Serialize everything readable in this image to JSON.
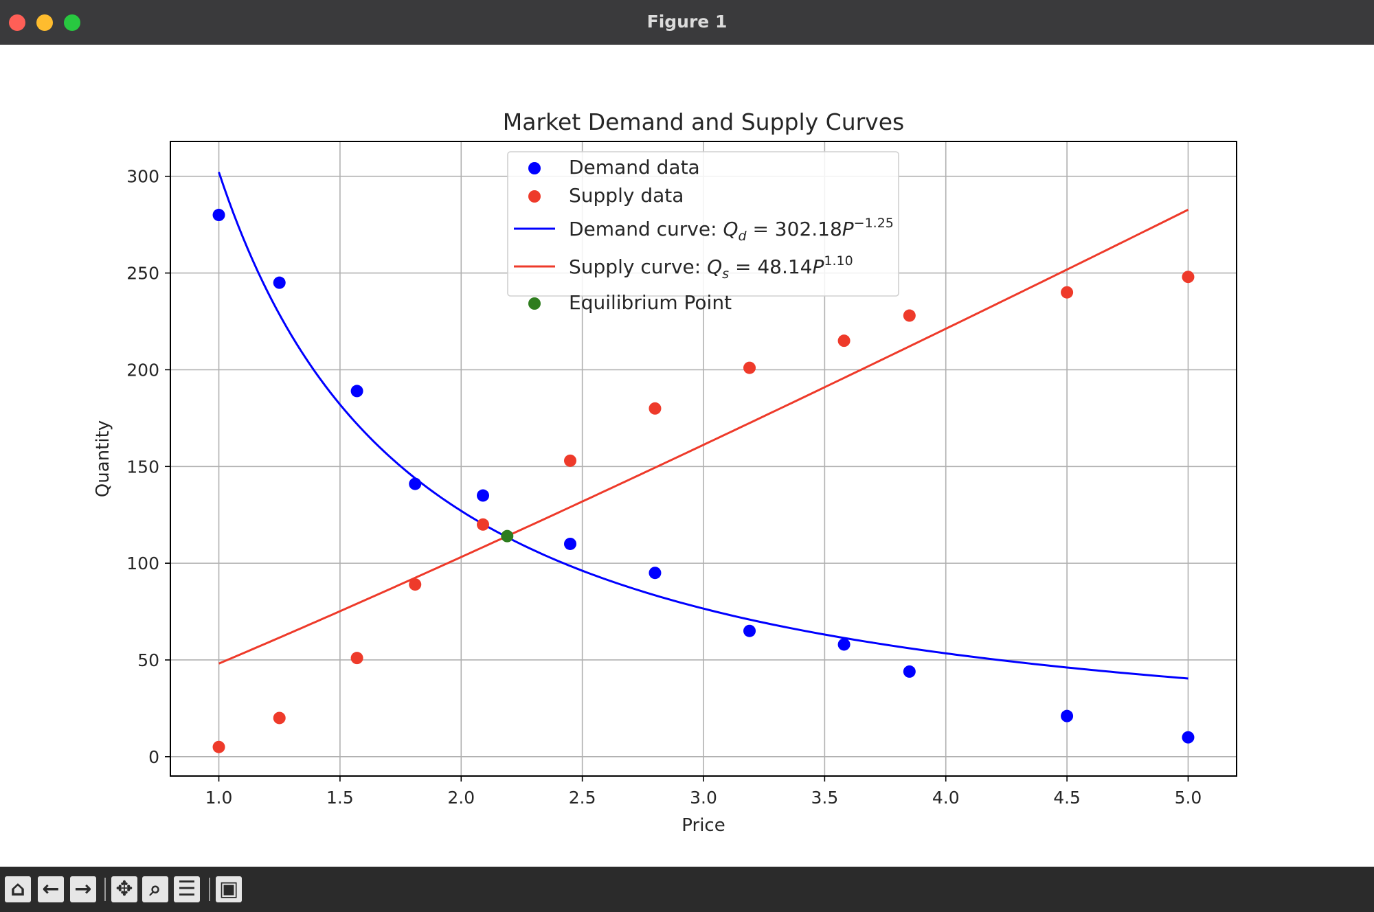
{
  "window": {
    "title": "Figure 1"
  },
  "toolbar": {
    "buttons": [
      {
        "name": "home-button",
        "icon": "home-icon",
        "glyph": "⌂"
      },
      {
        "name": "back-button",
        "icon": "arrow-left-icon",
        "glyph": "←"
      },
      {
        "name": "forward-button",
        "icon": "arrow-right-icon",
        "glyph": "→"
      },
      {
        "name": "pan-button",
        "icon": "move-icon",
        "glyph": "✥"
      },
      {
        "name": "zoom-button",
        "icon": "magnifier-icon",
        "glyph": "⌕"
      },
      {
        "name": "configure-subplots-button",
        "icon": "sliders-icon",
        "glyph": "☰"
      },
      {
        "name": "save-button",
        "icon": "floppy-disk-icon",
        "glyph": "▣"
      }
    ]
  },
  "chart_data": {
    "type": "scatter",
    "title": "Market Demand and Supply Curves",
    "xlabel": "Price",
    "ylabel": "Quantity",
    "xlim": [
      0.8,
      5.2
    ],
    "ylim": [
      -10,
      318
    ],
    "x_ticks": [
      1.0,
      1.5,
      2.0,
      2.5,
      3.0,
      3.5,
      4.0,
      4.5,
      5.0
    ],
    "x_tick_labels": [
      "1.0",
      "1.5",
      "2.0",
      "2.5",
      "3.0",
      "3.5",
      "4.0",
      "4.5",
      "5.0"
    ],
    "y_ticks": [
      0,
      50,
      100,
      150,
      200,
      250,
      300
    ],
    "y_tick_labels": [
      "0",
      "50",
      "100",
      "150",
      "200",
      "250",
      "300"
    ],
    "grid": true,
    "legend_position": "upper-center",
    "series": [
      {
        "name": "Demand data",
        "kind": "scatter",
        "color": "#0000ff",
        "points": [
          [
            1.0,
            280
          ],
          [
            1.25,
            245
          ],
          [
            1.57,
            189
          ],
          [
            1.81,
            141
          ],
          [
            2.09,
            135
          ],
          [
            2.45,
            110
          ],
          [
            2.8,
            95
          ],
          [
            3.19,
            65
          ],
          [
            3.58,
            58
          ],
          [
            3.85,
            44
          ],
          [
            4.5,
            21
          ],
          [
            5.0,
            10
          ]
        ]
      },
      {
        "name": "Supply data",
        "kind": "scatter",
        "color": "#ee3a2a",
        "points": [
          [
            1.0,
            5
          ],
          [
            1.25,
            20
          ],
          [
            1.57,
            51
          ],
          [
            1.81,
            89
          ],
          [
            2.09,
            120
          ],
          [
            2.45,
            153
          ],
          [
            2.8,
            180
          ],
          [
            3.19,
            201
          ],
          [
            3.58,
            215
          ],
          [
            3.85,
            228
          ],
          [
            4.5,
            240
          ],
          [
            5.0,
            248
          ]
        ]
      },
      {
        "name": "Demand curve: ",
        "name_math": {
          "var": "Q",
          "sub": "d",
          "eq": " = 302.18",
          "base": "P",
          "exp": "−1.25"
        },
        "kind": "line",
        "color": "#0000ff",
        "function": "power",
        "coef": 302.18,
        "exponent": -1.25,
        "x_range": [
          1.0,
          5.0
        ]
      },
      {
        "name": "Supply curve: ",
        "name_math": {
          "var": "Q",
          "sub": "s",
          "eq": " = 48.14",
          "base": "P",
          "exp": "1.10"
        },
        "kind": "line",
        "color": "#ee3a2a",
        "function": "power",
        "coef": 48.14,
        "exponent": 1.1,
        "x_range": [
          1.0,
          5.0
        ]
      },
      {
        "name": "Equilibrium Point",
        "kind": "scatter",
        "color": "#2e7d1e",
        "points": [
          [
            2.19,
            114
          ]
        ]
      }
    ]
  }
}
